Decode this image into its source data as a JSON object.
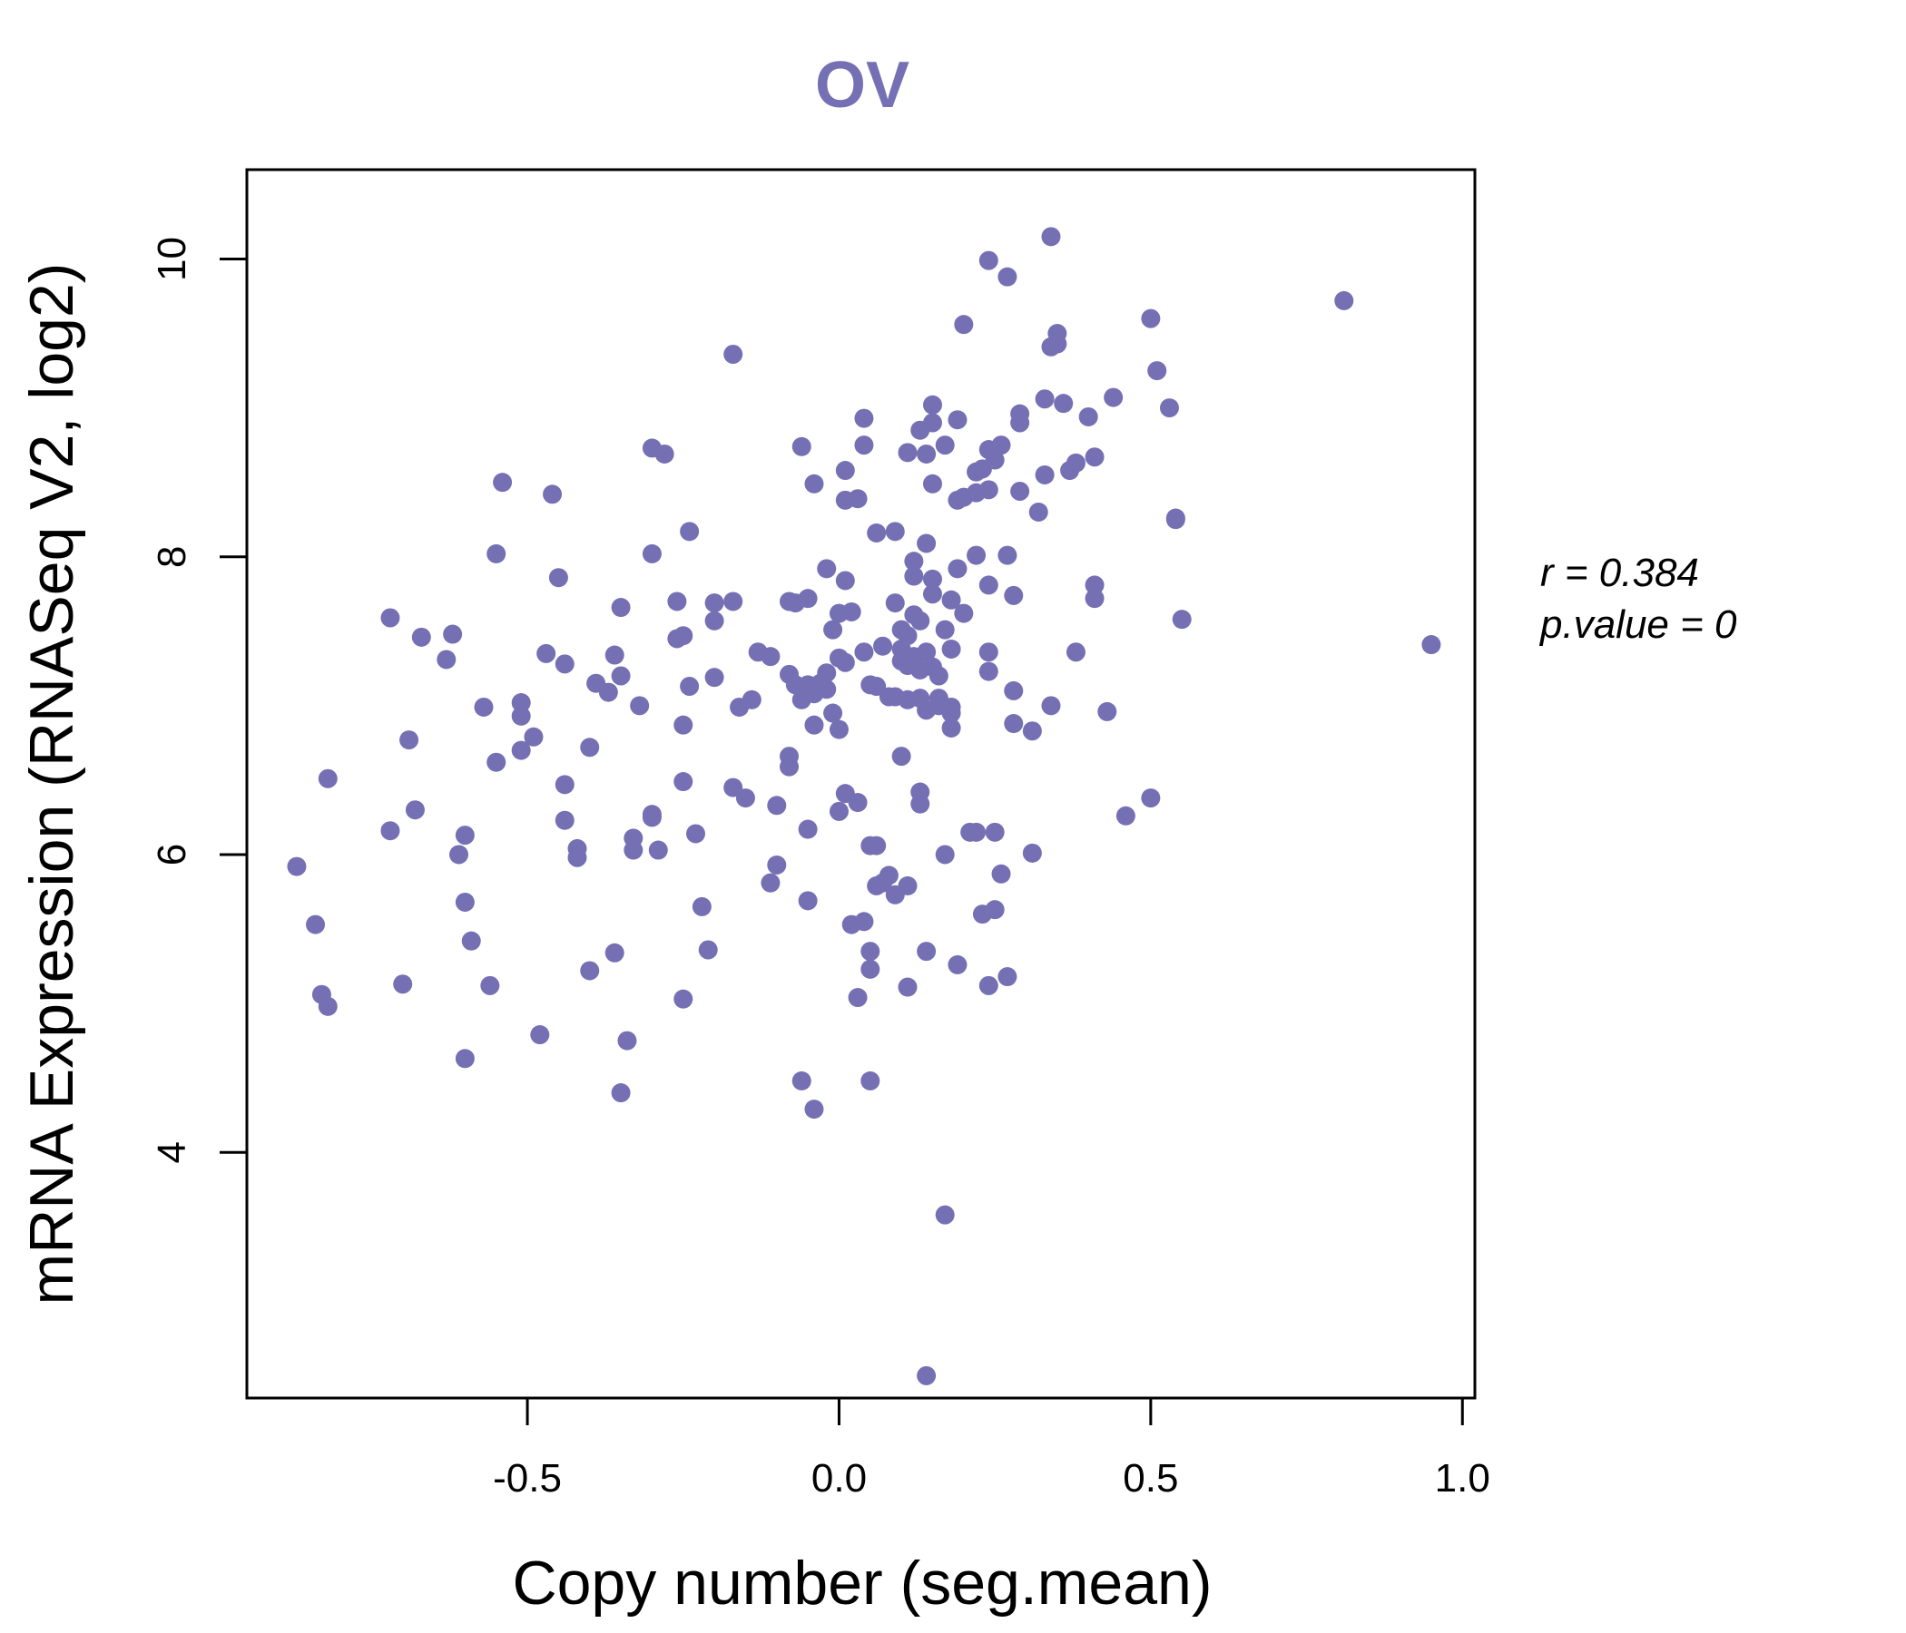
{
  "chart_data": {
    "type": "scatter",
    "title": "OV",
    "xlabel": "Copy number (seg.mean)",
    "ylabel": "mRNA Expression (RNASeq V2, log2)",
    "xlim": [
      -0.95,
      1.02
    ],
    "ylim": [
      2.35,
      10.6
    ],
    "x_ticks": [
      -0.5,
      0.0,
      0.5,
      1.0
    ],
    "x_tick_labels": [
      "-0.5",
      "0.0",
      "0.5",
      "1.0"
    ],
    "y_ticks": [
      4,
      6,
      8,
      10
    ],
    "y_tick_labels": [
      "4",
      "6",
      "8",
      "10"
    ],
    "grid": false,
    "legend": "none",
    "point_color": "#7570B3",
    "stats": {
      "r_text": "r = 0.384",
      "p_text": "p.value = 0"
    },
    "points": [
      [
        -0.87,
        5.92
      ],
      [
        -0.84,
        5.53
      ],
      [
        -0.83,
        5.06
      ],
      [
        -0.82,
        6.51
      ],
      [
        -0.82,
        4.98
      ],
      [
        -0.72,
        7.59
      ],
      [
        -0.72,
        6.16
      ],
      [
        -0.7,
        5.13
      ],
      [
        -0.69,
        6.77
      ],
      [
        -0.68,
        6.3
      ],
      [
        -0.67,
        7.46
      ],
      [
        -0.63,
        7.31
      ],
      [
        -0.62,
        7.48
      ],
      [
        -0.61,
        6.0
      ],
      [
        -0.6,
        6.13
      ],
      [
        -0.6,
        5.68
      ],
      [
        -0.6,
        4.63
      ],
      [
        -0.59,
        5.42
      ],
      [
        -0.57,
        6.99
      ],
      [
        -0.56,
        5.12
      ],
      [
        -0.55,
        8.02
      ],
      [
        -0.55,
        6.62
      ],
      [
        -0.54,
        8.5
      ],
      [
        -0.51,
        7.02
      ],
      [
        -0.51,
        6.93
      ],
      [
        -0.51,
        6.7
      ],
      [
        -0.49,
        6.79
      ],
      [
        -0.48,
        4.79
      ],
      [
        -0.47,
        7.35
      ],
      [
        -0.46,
        8.42
      ],
      [
        -0.45,
        7.86
      ],
      [
        -0.44,
        7.28
      ],
      [
        -0.44,
        6.47
      ],
      [
        -0.44,
        6.23
      ],
      [
        -0.42,
        6.04
      ],
      [
        -0.42,
        5.98
      ],
      [
        -0.4,
        6.72
      ],
      [
        -0.4,
        5.22
      ],
      [
        -0.39,
        7.15
      ],
      [
        -0.37,
        7.09
      ],
      [
        -0.36,
        7.34
      ],
      [
        -0.36,
        5.34
      ],
      [
        -0.35,
        7.66
      ],
      [
        -0.35,
        7.2
      ],
      [
        -0.35,
        4.4
      ],
      [
        -0.34,
        4.75
      ],
      [
        -0.33,
        6.11
      ],
      [
        -0.33,
        6.03
      ],
      [
        -0.32,
        7.0
      ],
      [
        -0.3,
        8.73
      ],
      [
        -0.3,
        8.02
      ],
      [
        -0.3,
        6.27
      ],
      [
        -0.3,
        6.25
      ],
      [
        -0.29,
        6.03
      ],
      [
        -0.28,
        8.69
      ],
      [
        -0.26,
        7.7
      ],
      [
        -0.26,
        7.45
      ],
      [
        -0.25,
        7.47
      ],
      [
        -0.25,
        6.87
      ],
      [
        -0.25,
        6.49
      ],
      [
        -0.25,
        5.03
      ],
      [
        -0.24,
        8.17
      ],
      [
        -0.24,
        7.13
      ],
      [
        -0.23,
        6.14
      ],
      [
        -0.22,
        5.65
      ],
      [
        -0.21,
        5.36
      ],
      [
        -0.2,
        7.69
      ],
      [
        -0.2,
        7.57
      ],
      [
        -0.2,
        7.19
      ],
      [
        -0.17,
        9.36
      ],
      [
        -0.17,
        7.7
      ],
      [
        -0.17,
        6.45
      ],
      [
        -0.16,
        6.99
      ],
      [
        -0.15,
        6.38
      ],
      [
        -0.14,
        7.04
      ],
      [
        -0.13,
        7.36
      ],
      [
        -0.11,
        7.33
      ],
      [
        -0.11,
        5.81
      ],
      [
        -0.1,
        6.33
      ],
      [
        -0.1,
        5.93
      ],
      [
        -0.08,
        7.7
      ],
      [
        -0.08,
        7.21
      ],
      [
        -0.08,
        6.66
      ],
      [
        -0.08,
        6.59
      ],
      [
        -0.07,
        7.14
      ],
      [
        -0.07,
        7.69
      ],
      [
        -0.06,
        8.74
      ],
      [
        -0.06,
        7.04
      ],
      [
        -0.06,
        4.48
      ],
      [
        -0.05,
        7.72
      ],
      [
        -0.05,
        7.14
      ],
      [
        -0.05,
        6.17
      ],
      [
        -0.05,
        5.69
      ],
      [
        -0.04,
        8.49
      ],
      [
        -0.04,
        7.08
      ],
      [
        -0.04,
        6.87
      ],
      [
        -0.04,
        4.29
      ],
      [
        -0.03,
        7.15
      ],
      [
        -0.02,
        7.92
      ],
      [
        -0.02,
        7.22
      ],
      [
        -0.02,
        7.11
      ],
      [
        -0.01,
        7.51
      ],
      [
        -0.01,
        6.95
      ],
      [
        0.0,
        7.62
      ],
      [
        0.0,
        7.32
      ],
      [
        0.0,
        6.84
      ],
      [
        0.0,
        6.29
      ],
      [
        0.01,
        8.58
      ],
      [
        0.01,
        8.38
      ],
      [
        0.01,
        7.84
      ],
      [
        0.01,
        7.29
      ],
      [
        0.01,
        6.41
      ],
      [
        0.02,
        7.63
      ],
      [
        0.02,
        5.53
      ],
      [
        0.03,
        8.39
      ],
      [
        0.03,
        6.35
      ],
      [
        0.03,
        5.04
      ],
      [
        0.04,
        8.93
      ],
      [
        0.04,
        7.36
      ],
      [
        0.04,
        5.55
      ],
      [
        0.04,
        8.75
      ],
      [
        0.05,
        7.14
      ],
      [
        0.05,
        6.06
      ],
      [
        0.05,
        5.35
      ],
      [
        0.05,
        5.23
      ],
      [
        0.05,
        4.48
      ],
      [
        0.06,
        8.16
      ],
      [
        0.06,
        7.13
      ],
      [
        0.06,
        6.06
      ],
      [
        0.06,
        5.79
      ],
      [
        0.07,
        7.4
      ],
      [
        0.07,
        5.81
      ],
      [
        0.08,
        7.06
      ],
      [
        0.08,
        5.86
      ],
      [
        0.09,
        8.17
      ],
      [
        0.09,
        7.69
      ],
      [
        0.09,
        7.06
      ],
      [
        0.09,
        5.73
      ],
      [
        0.1,
        7.51
      ],
      [
        0.1,
        7.3
      ],
      [
        0.1,
        6.66
      ],
      [
        0.1,
        7.38
      ],
      [
        0.11,
        8.7
      ],
      [
        0.11,
        7.47
      ],
      [
        0.11,
        7.27
      ],
      [
        0.11,
        7.04
      ],
      [
        0.11,
        5.79
      ],
      [
        0.11,
        5.11
      ],
      [
        0.12,
        7.97
      ],
      [
        0.12,
        7.87
      ],
      [
        0.12,
        7.61
      ],
      [
        0.12,
        7.33
      ],
      [
        0.13,
        8.85
      ],
      [
        0.13,
        7.57
      ],
      [
        0.13,
        7.24
      ],
      [
        0.13,
        7.05
      ],
      [
        0.13,
        6.42
      ],
      [
        0.13,
        6.34
      ],
      [
        0.14,
        8.69
      ],
      [
        0.14,
        8.09
      ],
      [
        0.14,
        7.36
      ],
      [
        0.14,
        6.97
      ],
      [
        0.14,
        5.35
      ],
      [
        0.14,
        2.5
      ],
      [
        0.15,
        9.02
      ],
      [
        0.15,
        8.49
      ],
      [
        0.15,
        8.9
      ],
      [
        0.15,
        7.85
      ],
      [
        0.15,
        7.75
      ],
      [
        0.15,
        7.26
      ],
      [
        0.16,
        7.05
      ],
      [
        0.16,
        7.2
      ],
      [
        0.16,
        7.0
      ],
      [
        0.17,
        8.75
      ],
      [
        0.17,
        7.51
      ],
      [
        0.17,
        6.0
      ],
      [
        0.17,
        3.58
      ],
      [
        0.18,
        7.71
      ],
      [
        0.18,
        6.95
      ],
      [
        0.18,
        7.38
      ],
      [
        0.18,
        6.99
      ],
      [
        0.18,
        6.85
      ],
      [
        0.19,
        8.92
      ],
      [
        0.19,
        7.92
      ],
      [
        0.19,
        8.38
      ],
      [
        0.19,
        5.26
      ],
      [
        0.2,
        9.56
      ],
      [
        0.2,
        8.4
      ],
      [
        0.2,
        7.62
      ],
      [
        0.21,
        6.15
      ],
      [
        0.22,
        8.43
      ],
      [
        0.22,
        8.57
      ],
      [
        0.22,
        8.01
      ],
      [
        0.22,
        6.15
      ],
      [
        0.23,
        8.59
      ],
      [
        0.23,
        5.6
      ],
      [
        0.24,
        9.99
      ],
      [
        0.24,
        8.72
      ],
      [
        0.24,
        8.45
      ],
      [
        0.24,
        7.81
      ],
      [
        0.24,
        7.36
      ],
      [
        0.24,
        7.23
      ],
      [
        0.24,
        5.12
      ],
      [
        0.25,
        8.65
      ],
      [
        0.25,
        6.15
      ],
      [
        0.25,
        5.63
      ],
      [
        0.26,
        8.75
      ],
      [
        0.26,
        5.87
      ],
      [
        0.27,
        8.01
      ],
      [
        0.27,
        5.18
      ],
      [
        0.27,
        9.88
      ],
      [
        0.28,
        7.74
      ],
      [
        0.28,
        7.1
      ],
      [
        0.28,
        6.88
      ],
      [
        0.29,
        8.96
      ],
      [
        0.29,
        8.9
      ],
      [
        0.29,
        8.44
      ],
      [
        0.31,
        6.83
      ],
      [
        0.31,
        6.01
      ],
      [
        0.32,
        8.3
      ],
      [
        0.33,
        9.06
      ],
      [
        0.33,
        8.55
      ],
      [
        0.34,
        10.15
      ],
      [
        0.34,
        9.41
      ],
      [
        0.34,
        7.0
      ],
      [
        0.35,
        9.5
      ],
      [
        0.35,
        9.43
      ],
      [
        0.36,
        9.03
      ],
      [
        0.37,
        8.58
      ],
      [
        0.38,
        8.63
      ],
      [
        0.38,
        7.36
      ],
      [
        0.4,
        8.94
      ],
      [
        0.41,
        8.67
      ],
      [
        0.41,
        7.81
      ],
      [
        0.41,
        7.72
      ],
      [
        0.43,
        6.96
      ],
      [
        0.44,
        9.07
      ],
      [
        0.46,
        6.26
      ],
      [
        0.5,
        9.6
      ],
      [
        0.5,
        6.38
      ],
      [
        0.51,
        9.25
      ],
      [
        0.53,
        9.0
      ],
      [
        0.54,
        8.25
      ],
      [
        0.54,
        8.26
      ],
      [
        0.55,
        7.58
      ],
      [
        0.81,
        9.72
      ],
      [
        0.95,
        7.41
      ]
    ]
  }
}
